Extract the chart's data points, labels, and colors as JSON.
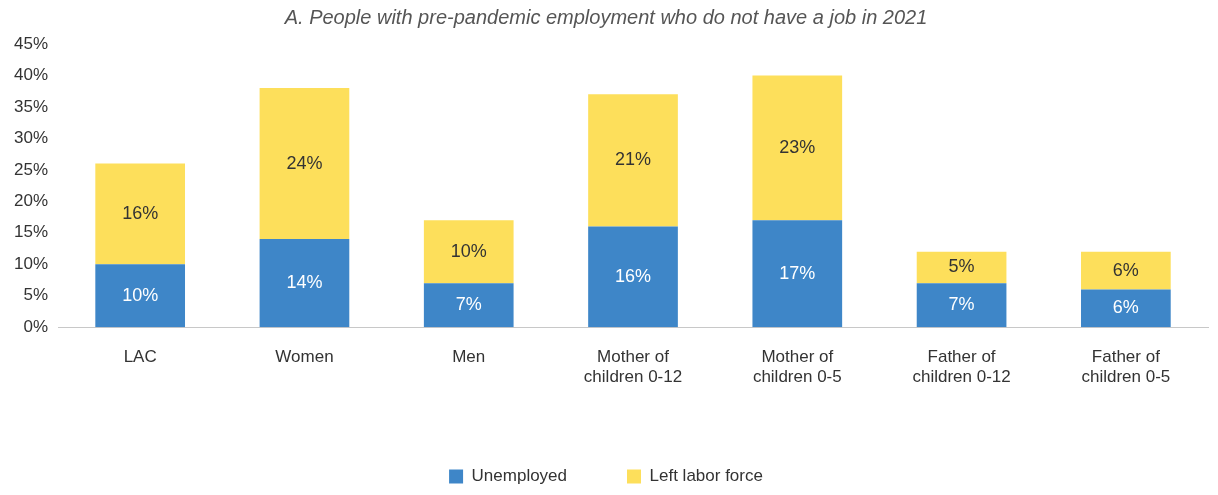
{
  "chart_data": {
    "type": "bar",
    "title": "A. People with pre-pandemic employment who do not have a job in 2021",
    "categories": [
      "LAC",
      "Women",
      "Men",
      "Mother of children 0-12",
      "Mother of children 0-5",
      "Father of children 0-12",
      "Father of children 0-5"
    ],
    "series": [
      {
        "name": "Unemployed",
        "color": "#3e86c8",
        "values": [
          10,
          14,
          7,
          16,
          17,
          7,
          6
        ],
        "value_labels": [
          "10%",
          "14%",
          "7%",
          "16%",
          "17%",
          "7%",
          "6%"
        ]
      },
      {
        "name": "Left labor force",
        "color": "#fddf5b",
        "values": [
          16,
          24,
          10,
          21,
          23,
          5,
          6
        ],
        "value_labels": [
          "16%",
          "24%",
          "10%",
          "21%",
          "23%",
          "5%",
          "6%"
        ]
      }
    ],
    "stacked": true,
    "ylim": [
      0,
      45
    ],
    "yticks": [
      {
        "value": 0,
        "label": "0%"
      },
      {
        "value": 5,
        "label": "5%"
      },
      {
        "value": 10,
        "label": "10%"
      },
      {
        "value": 15,
        "label": "15%"
      },
      {
        "value": 20,
        "label": "20%"
      },
      {
        "value": 25,
        "label": "25%"
      },
      {
        "value": 30,
        "label": "30%"
      },
      {
        "value": 35,
        "label": "35%"
      },
      {
        "value": 40,
        "label": "40%"
      },
      {
        "value": 45,
        "label": "45%"
      }
    ],
    "grid": false,
    "legend": "bottom"
  }
}
